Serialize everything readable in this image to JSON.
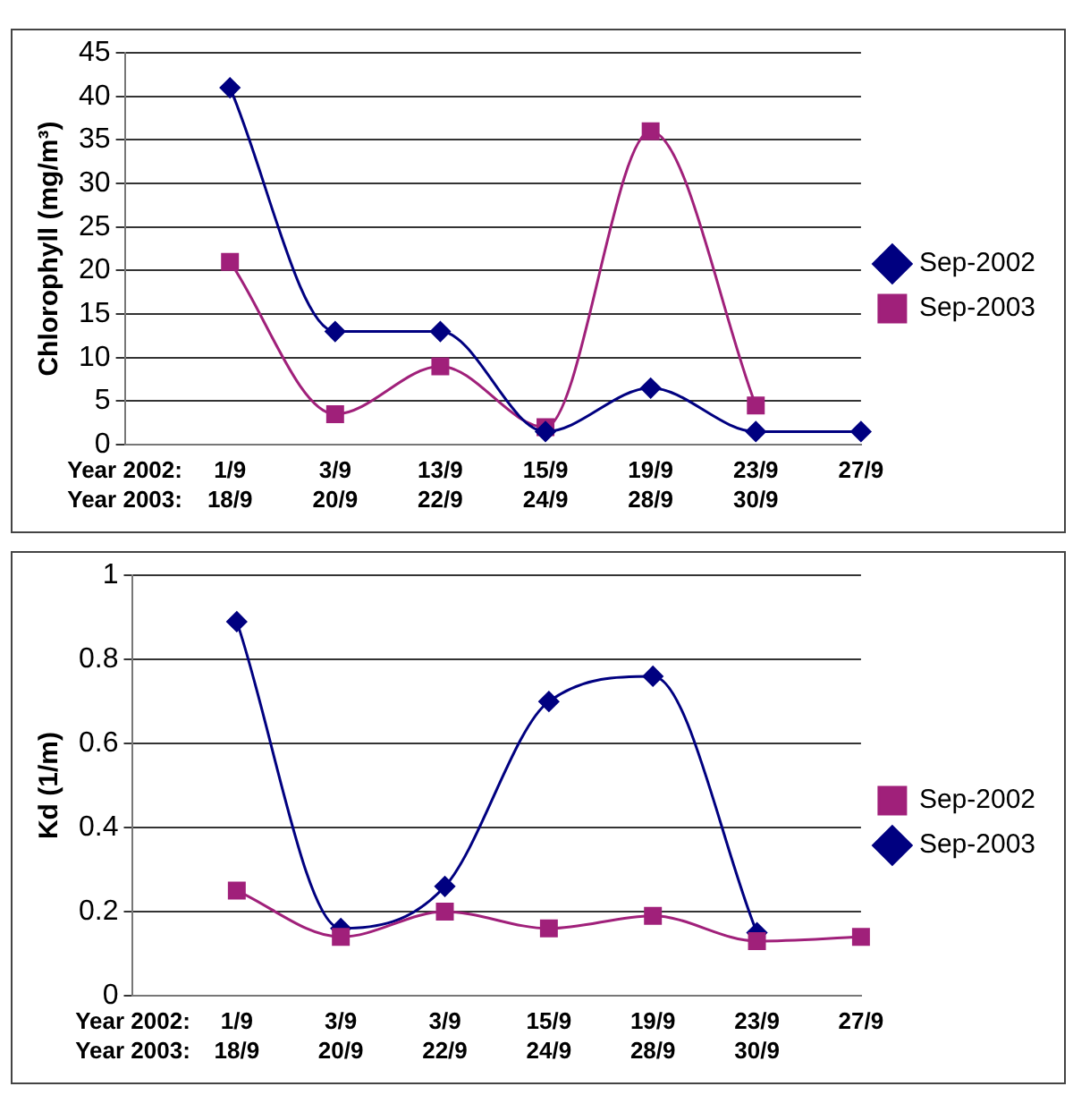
{
  "chart_data": [
    {
      "type": "line",
      "ylabel": "Chlorophyll (mg/m³)",
      "annotations": [
        "Year 2002:",
        "Year 2003:"
      ],
      "categories": [
        null,
        "1/9\n18/9",
        "3/9\n20/9",
        "13/9\n22/9",
        "15/9\n24/9",
        "19/9\n28/9",
        "23/9\n30/9",
        "27/9"
      ],
      "series": [
        {
          "name": "Sep-2002",
          "color": "#000080",
          "marker": "diamond",
          "values": [
            null,
            41,
            13,
            13,
            1.5,
            6.5,
            1.5,
            1.5
          ]
        },
        {
          "name": "Sep-2003",
          "color": "#a0207a",
          "marker": "square",
          "values": [
            null,
            21,
            3.5,
            9,
            2,
            36,
            4.5,
            null
          ]
        }
      ],
      "ylim": [
        0,
        45
      ],
      "yticks": [
        0,
        5,
        10,
        15,
        20,
        25,
        30,
        35,
        40,
        45
      ],
      "grid": "y",
      "legend": "right"
    },
    {
      "type": "line",
      "ylabel": "Kd (1/m)",
      "annotations": [
        "Year 2002:",
        "Year 2003:"
      ],
      "categories": [
        null,
        "1/9\n18/9",
        "3/9\n20/9",
        "3/9\n22/9",
        "15/9\n24/9",
        "19/9\n28/9",
        "23/9\n30/9",
        "27/9"
      ],
      "series": [
        {
          "name": "Sep-2002",
          "color": "#a0207a",
          "marker": "square",
          "values": [
            null,
            0.25,
            0.14,
            0.2,
            0.16,
            0.19,
            0.13,
            0.14
          ]
        },
        {
          "name": "Sep-2003",
          "color": "#000080",
          "marker": "diamond",
          "values": [
            null,
            0.89,
            0.16,
            0.26,
            0.7,
            0.76,
            0.15,
            null
          ]
        }
      ],
      "ylim": [
        0,
        1
      ],
      "yticks": [
        0,
        0.2,
        0.4,
        0.6,
        0.8,
        1
      ],
      "grid": "y",
      "legend": "right"
    }
  ]
}
